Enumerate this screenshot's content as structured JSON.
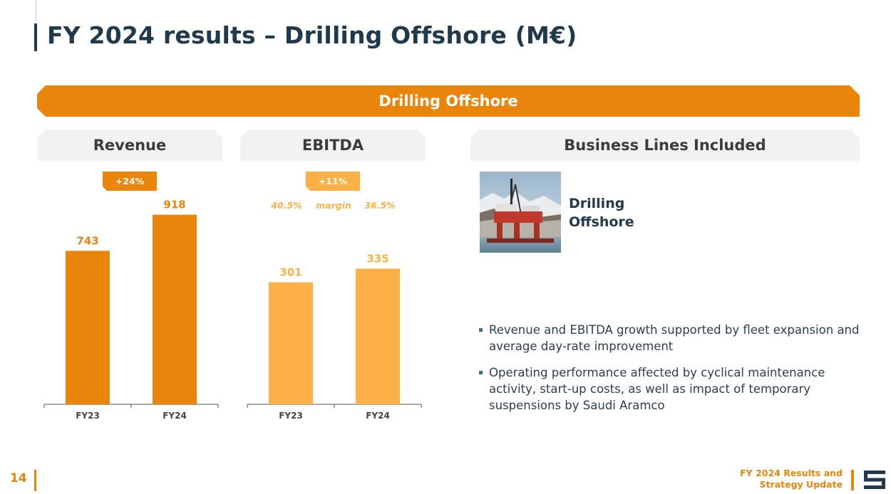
{
  "header": {
    "title": "FY 2024 results – Drilling Offshore (M€)"
  },
  "banner": {
    "label": "Drilling Offshore"
  },
  "panels": {
    "revenue": {
      "label": "Revenue"
    },
    "ebitda": {
      "label": "EBITDA"
    },
    "business_lines": {
      "label": "Business Lines Included"
    }
  },
  "colors": {
    "revenue_bar": "#e8850a",
    "ebitda_bar": "#fdb045",
    "navy": "#1f3a4d"
  },
  "chart_data": [
    {
      "type": "bar",
      "title": "Revenue",
      "categories": [
        "FY23",
        "FY24"
      ],
      "values": [
        743,
        918
      ],
      "growth_label": "+24%",
      "ylim": [
        0,
        1020
      ]
    },
    {
      "type": "bar",
      "title": "EBITDA",
      "categories": [
        "FY23",
        "FY24"
      ],
      "values": [
        301,
        335
      ],
      "growth_label": "+11%",
      "margin_label": "margin",
      "margins": [
        "40.5%",
        "36.5%"
      ],
      "ylim": [
        0,
        520
      ]
    }
  ],
  "business_line": {
    "name": "Drilling Offshore"
  },
  "bullets": [
    "Revenue and EBITDA growth supported by fleet expansion and average day-rate improvement",
    "Operating performance affected by cyclical maintenance activity, start-up costs, as well as impact of temporary suspensions by Saudi Aramco"
  ],
  "footer": {
    "page_number": "14",
    "line1": "FY 2024 Results and",
    "line2": "Strategy Update"
  }
}
